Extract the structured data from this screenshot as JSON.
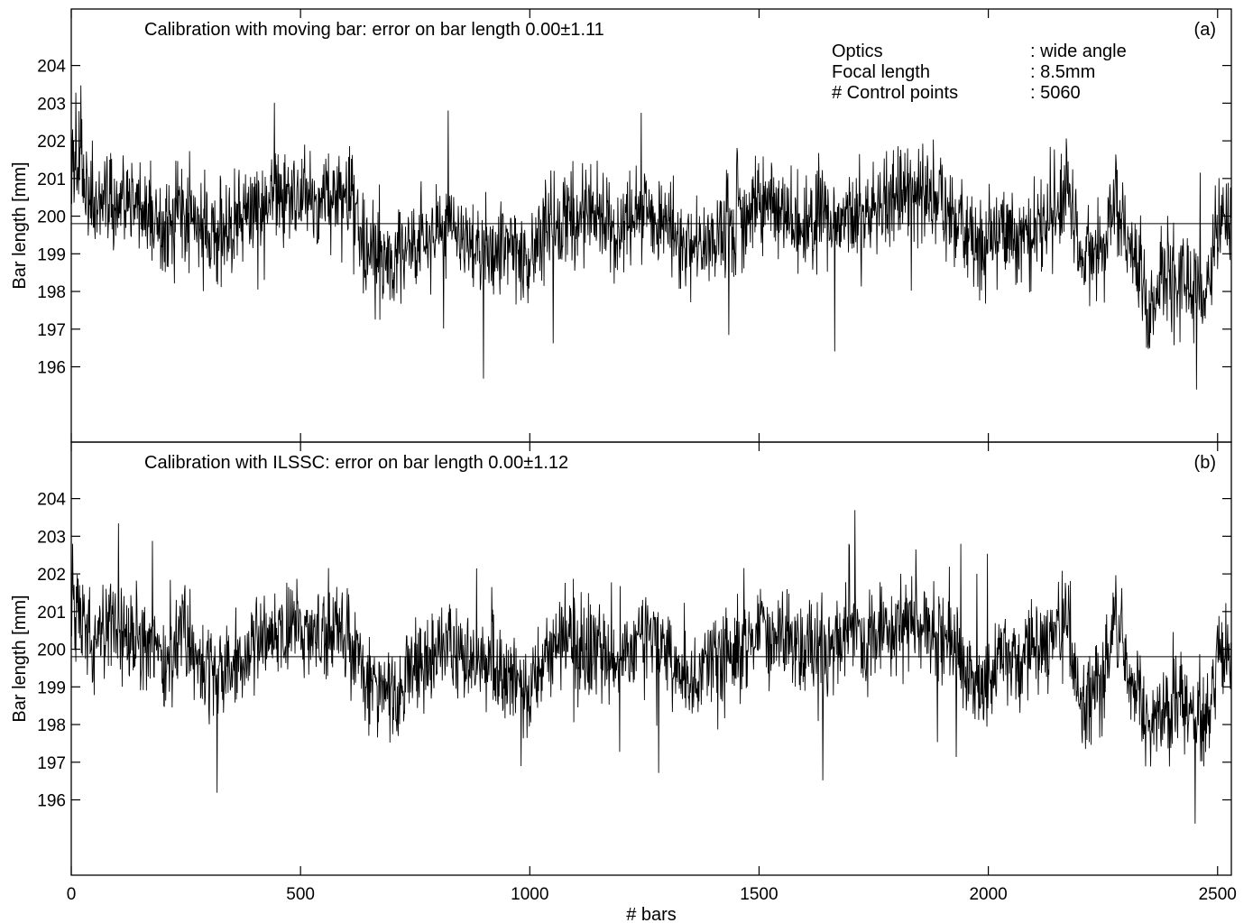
{
  "chart_data": [
    {
      "type": "line",
      "panel_label": "(a)",
      "title": "Calibration with moving bar: error on bar length 0.00±1.11",
      "xlabel": "",
      "ylabel": "Bar length [mm]",
      "xlim": [
        0,
        2530
      ],
      "ylim": [
        194,
        205.5
      ],
      "xticks": [
        0,
        500,
        1000,
        1500,
        2000,
        2500
      ],
      "yticks": [
        196,
        197,
        198,
        199,
        200,
        201,
        202,
        203,
        204
      ],
      "reference_line_y": 199.8,
      "info": [
        {
          "label": "Optics",
          "value": ": wide angle"
        },
        {
          "label": "Focal length",
          "value": ": 8.5mm"
        },
        {
          "label": "# Control points",
          "value": ": 5060"
        }
      ],
      "series": [
        {
          "seed": 12345,
          "n": 2530,
          "trend": [
            [
              0,
              201.0
            ],
            [
              15,
              201.4
            ],
            [
              40,
              200.3
            ],
            [
              100,
              200.4
            ],
            [
              150,
              200.2
            ],
            [
              210,
              199.5
            ],
            [
              240,
              200.4
            ],
            [
              280,
              199.6
            ],
            [
              340,
              199.7
            ],
            [
              420,
              200.3
            ],
            [
              480,
              200.5
            ],
            [
              560,
              200.4
            ],
            [
              600,
              200.6
            ],
            [
              640,
              199.2
            ],
            [
              700,
              198.6
            ],
            [
              760,
              199.4
            ],
            [
              830,
              199.6
            ],
            [
              900,
              199.0
            ],
            [
              960,
              199.2
            ],
            [
              1000,
              198.6
            ],
            [
              1030,
              199.6
            ],
            [
              1080,
              200.0
            ],
            [
              1140,
              200.1
            ],
            [
              1200,
              199.6
            ],
            [
              1250,
              200.2
            ],
            [
              1300,
              199.8
            ],
            [
              1340,
              199.0
            ],
            [
              1400,
              199.4
            ],
            [
              1460,
              199.8
            ],
            [
              1520,
              200.4
            ],
            [
              1580,
              199.9
            ],
            [
              1640,
              199.8
            ],
            [
              1700,
              199.9
            ],
            [
              1760,
              200.3
            ],
            [
              1820,
              200.6
            ],
            [
              1880,
              200.5
            ],
            [
              1940,
              199.8
            ],
            [
              1980,
              199.0
            ],
            [
              2020,
              199.6
            ],
            [
              2080,
              199.5
            ],
            [
              2140,
              200.0
            ],
            [
              2170,
              201.0
            ],
            [
              2200,
              199.0
            ],
            [
              2240,
              198.9
            ],
            [
              2280,
              200.6
            ],
            [
              2320,
              199.0
            ],
            [
              2350,
              197.3
            ],
            [
              2380,
              198.4
            ],
            [
              2440,
              198.2
            ],
            [
              2480,
              198.0
            ],
            [
              2500,
              199.8
            ],
            [
              2530,
              199.8
            ]
          ],
          "noise": 0.62
        }
      ]
    },
    {
      "type": "line",
      "panel_label": "(b)",
      "title": "Calibration with ILSSC: error on bar length 0.00±1.12",
      "xlabel": "# bars",
      "ylabel": "Bar length [mm]",
      "xlim": [
        0,
        2530
      ],
      "ylim": [
        194,
        205.5
      ],
      "xticks": [
        0,
        500,
        1000,
        1500,
        2000,
        2500
      ],
      "yticks": [
        196,
        197,
        198,
        199,
        200,
        201,
        202,
        203,
        204
      ],
      "reference_line_y": 199.8,
      "series": [
        {
          "seed": 67890,
          "n": 2530,
          "trend": [
            [
              0,
              201.0
            ],
            [
              15,
              201.3
            ],
            [
              40,
              200.3
            ],
            [
              100,
              200.5
            ],
            [
              150,
              200.3
            ],
            [
              210,
              199.6
            ],
            [
              240,
              200.6
            ],
            [
              280,
              199.5
            ],
            [
              340,
              199.4
            ],
            [
              420,
              200.2
            ],
            [
              480,
              200.6
            ],
            [
              560,
              200.5
            ],
            [
              600,
              200.8
            ],
            [
              640,
              199.1
            ],
            [
              700,
              198.8
            ],
            [
              760,
              199.6
            ],
            [
              830,
              200.1
            ],
            [
              900,
              199.5
            ],
            [
              960,
              199.2
            ],
            [
              1000,
              198.8
            ],
            [
              1030,
              199.8
            ],
            [
              1080,
              200.2
            ],
            [
              1140,
              200.0
            ],
            [
              1200,
              199.7
            ],
            [
              1250,
              200.7
            ],
            [
              1300,
              199.9
            ],
            [
              1340,
              198.8
            ],
            [
              1400,
              199.5
            ],
            [
              1460,
              199.9
            ],
            [
              1520,
              200.6
            ],
            [
              1580,
              199.9
            ],
            [
              1640,
              200.0
            ],
            [
              1700,
              200.4
            ],
            [
              1760,
              200.4
            ],
            [
              1820,
              200.6
            ],
            [
              1880,
              200.5
            ],
            [
              1940,
              199.8
            ],
            [
              1980,
              198.8
            ],
            [
              2020,
              199.8
            ],
            [
              2080,
              199.9
            ],
            [
              2140,
              200.2
            ],
            [
              2170,
              200.9
            ],
            [
              2200,
              198.4
            ],
            [
              2240,
              199.2
            ],
            [
              2280,
              200.5
            ],
            [
              2320,
              199.0
            ],
            [
              2350,
              198.1
            ],
            [
              2380,
              198.3
            ],
            [
              2440,
              198.5
            ],
            [
              2480,
              198.2
            ],
            [
              2500,
              199.9
            ],
            [
              2530,
              199.9
            ]
          ],
          "noise": 0.62
        }
      ]
    }
  ]
}
